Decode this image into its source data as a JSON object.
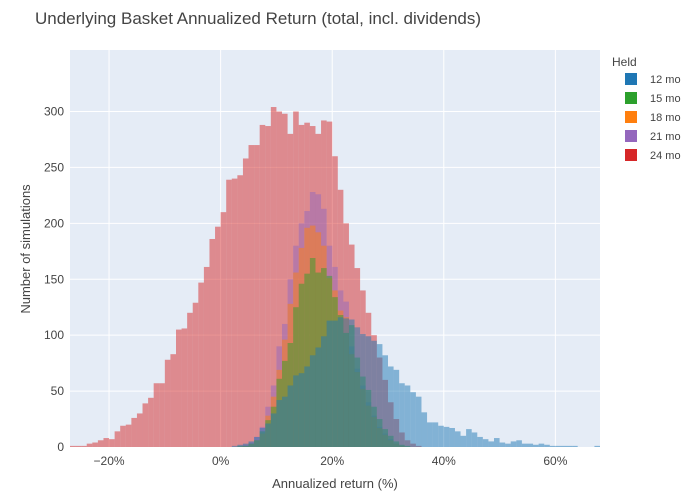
{
  "chart_data": {
    "type": "histogram",
    "barmode": "overlay",
    "title": "Underlying Basket Annualized Return (total, incl. dividends)",
    "xlabel": "Annualized return (%)",
    "ylabel": "Number of simulations",
    "xlim": [
      -27,
      68
    ],
    "ylim": [
      0,
      355
    ],
    "bin_width": 1,
    "x_ticks": [
      -20,
      0,
      20,
      40,
      60
    ],
    "x_tick_labels": [
      "−20%",
      "0%",
      "20%",
      "40%",
      "60%"
    ],
    "y_ticks": [
      0,
      50,
      100,
      150,
      200,
      250,
      300
    ],
    "grid": true,
    "plot_background": "#e5ecf6",
    "legend": {
      "title": "Held",
      "position": "right-top"
    },
    "series": [
      {
        "name": "24 mo",
        "color": "#d62728",
        "x_start": -27,
        "values": [
          1,
          1,
          1,
          3,
          4,
          6,
          8,
          7,
          14,
          19,
          20,
          26,
          30,
          39,
          44,
          57,
          57,
          78,
          83,
          105,
          106,
          120,
          129,
          147,
          161,
          186,
          197,
          210,
          239,
          240,
          243,
          258,
          270,
          270,
          288,
          287,
          304,
          300,
          298,
          280,
          300,
          288,
          290,
          287,
          280,
          292,
          291,
          260,
          230,
          200,
          181,
          160,
          140,
          120,
          100,
          80,
          60,
          40,
          25,
          13,
          6,
          3,
          1
        ]
      },
      {
        "name": "21 mo",
        "color": "#9467bd",
        "x_start": 4,
        "values": [
          2,
          4,
          9,
          18,
          36,
          55,
          90,
          110,
          150,
          180,
          200,
          211,
          228,
          226,
          213,
          180,
          161,
          140,
          130,
          90,
          70,
          55,
          40,
          28,
          18,
          12,
          7,
          3,
          1
        ]
      },
      {
        "name": "18 mo",
        "color": "#ff7f0e",
        "x_start": 4,
        "values": [
          1,
          3,
          6,
          12,
          28,
          45,
          69,
          96,
          128,
          156,
          178,
          196,
          198,
          192,
          180,
          151,
          140,
          122,
          116,
          83,
          67,
          52,
          37,
          27,
          17,
          11,
          6,
          3,
          1
        ]
      },
      {
        "name": "15 mo",
        "color": "#2ca02c",
        "x_start": 3,
        "values": [
          1,
          1,
          3,
          6,
          14,
          24,
          36,
          61,
          77,
          93,
          125,
          146,
          155,
          169,
          156,
          160,
          153,
          134,
          118,
          102,
          109,
          80,
          63,
          51,
          36,
          25,
          16,
          10,
          5,
          2,
          1
        ]
      },
      {
        "name": "12 mo",
        "color": "#1f77b4",
        "x_start": 2,
        "values": [
          1,
          2,
          3,
          5,
          9,
          17,
          21,
          30,
          42,
          45,
          55,
          64,
          66,
          72,
          82,
          89,
          99,
          113,
          113,
          116,
          115,
          114,
          107,
          101,
          99,
          95,
          92,
          82,
          72,
          69,
          57,
          55,
          49,
          45,
          31,
          22,
          22,
          19,
          18,
          17,
          14,
          10,
          16,
          13,
          9,
          7,
          5,
          8,
          4,
          3,
          5,
          6,
          3,
          3,
          2,
          3,
          2,
          1,
          1,
          1,
          1,
          1,
          0,
          0,
          0,
          1,
          0
        ]
      }
    ]
  }
}
